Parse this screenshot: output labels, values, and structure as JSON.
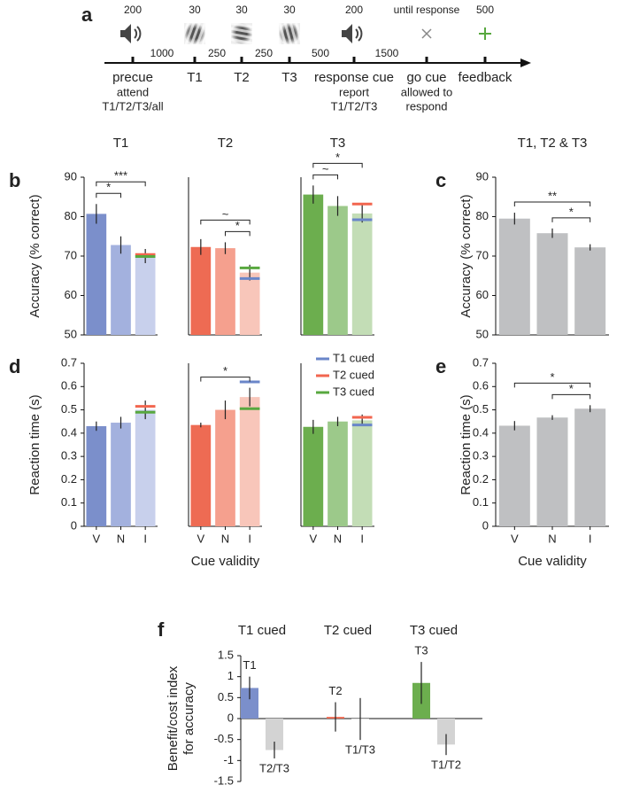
{
  "timeline": {
    "panel": "a",
    "events": [
      {
        "top": "200",
        "name": "precue",
        "sub": [
          "attend",
          "T1/T2/T3/all"
        ]
      },
      {
        "top": "30",
        "name": "T1",
        "sub": []
      },
      {
        "top": "30",
        "name": "T2",
        "sub": []
      },
      {
        "top": "30",
        "name": "T3",
        "sub": []
      },
      {
        "top": "200",
        "name": "response cue",
        "sub": [
          "report",
          "T1/T2/T3"
        ]
      },
      {
        "top": "until response",
        "name": "go cue",
        "sub": [
          "allowed to",
          "respond"
        ]
      },
      {
        "top": "500",
        "name": "feedback",
        "sub": []
      }
    ],
    "intervals": [
      "1000",
      "250",
      "250",
      "500",
      "1500"
    ]
  },
  "chart_data": [
    {
      "type": "bar",
      "panel": "b",
      "title": "T1",
      "ylabel": "Accuracy (% correct)",
      "ylim": [
        50,
        90
      ],
      "yticks": [
        50,
        60,
        70,
        80,
        90
      ],
      "values": [
        80.7,
        72.8,
        70.0
      ],
      "errors": [
        2.5,
        2.2,
        1.8
      ],
      "colors": [
        "#7b8fcb",
        "#a3b1de",
        "#c8d0ec"
      ],
      "cue_markers": [
        {
          "color": "#f2664f",
          "value": 70.4
        },
        {
          "color": "#58a83f",
          "value": 69.9
        }
      ],
      "significance": [
        {
          "between": [
            0,
            1
          ],
          "label": "*"
        },
        {
          "between": [
            0,
            2
          ],
          "label": "***"
        }
      ]
    },
    {
      "type": "bar",
      "title": "T2",
      "ylim": [
        50,
        90
      ],
      "values": [
        72.3,
        72.0,
        65.8
      ],
      "errors": [
        2.0,
        1.5,
        2.0
      ],
      "colors": [
        "#ee6b53",
        "#f5a08e",
        "#f8c6ba"
      ],
      "cue_markers": [
        {
          "color": "#58a83f",
          "value": 67.0
        },
        {
          "color": "#6a86c9",
          "value": 64.3
        }
      ],
      "significance": [
        {
          "between": [
            1,
            2
          ],
          "label": "*"
        },
        {
          "between": [
            0,
            2
          ],
          "label": "~"
        }
      ]
    },
    {
      "type": "bar",
      "title": "T3",
      "ylim": [
        50,
        90
      ],
      "values": [
        85.6,
        82.7,
        80.8
      ],
      "errors": [
        2.3,
        2.5,
        2.3
      ],
      "colors": [
        "#6cae4e",
        "#9cc98a",
        "#c3ddb6"
      ],
      "cue_markers": [
        {
          "color": "#f2664f",
          "value": 83.2
        },
        {
          "color": "#6a86c9",
          "value": 79.2
        }
      ],
      "significance": [
        {
          "between": [
            0,
            1
          ],
          "label": "~"
        },
        {
          "between": [
            0,
            2
          ],
          "label": "*"
        }
      ]
    },
    {
      "type": "bar",
      "panel": "c",
      "title": "T1, T2 & T3",
      "ylabel": "Accuracy (% correct)",
      "ylim": [
        50,
        90
      ],
      "yticks": [
        50,
        60,
        70,
        80,
        90
      ],
      "values": [
        79.5,
        75.8,
        72.2
      ],
      "errors": [
        1.5,
        1.2,
        0.8
      ],
      "colors": [
        "#bfc0c2",
        "#bfc0c2",
        "#bfc0c2"
      ],
      "significance": [
        {
          "between": [
            1,
            2
          ],
          "label": "*"
        },
        {
          "between": [
            0,
            2
          ],
          "label": "**"
        }
      ]
    },
    {
      "type": "bar",
      "panel": "d",
      "ylabel": "Reaction time (s)",
      "ylim": [
        0,
        0.7
      ],
      "yticks": [
        0,
        0.1,
        0.2,
        0.3,
        0.4,
        0.5,
        0.6,
        0.7
      ],
      "categories": [
        "V",
        "N",
        "I"
      ],
      "values": [
        0.43,
        0.445,
        0.5
      ],
      "errors": [
        0.02,
        0.025,
        0.04
      ],
      "colors": [
        "#7b8fcb",
        "#a3b1de",
        "#c8d0ec"
      ],
      "cue_markers": [
        {
          "color": "#f2664f",
          "value": 0.515
        },
        {
          "color": "#58a83f",
          "value": 0.49
        }
      ]
    },
    {
      "type": "bar",
      "xlabel": "Cue validity",
      "ylim": [
        0,
        0.7
      ],
      "categories": [
        "V",
        "N",
        "I"
      ],
      "values": [
        0.435,
        0.5,
        0.555
      ],
      "errors": [
        0.01,
        0.04,
        0.04
      ],
      "colors": [
        "#ee6b53",
        "#f5a08e",
        "#f8c6ba"
      ],
      "cue_markers": [
        {
          "color": "#6a86c9",
          "value": 0.62
        },
        {
          "color": "#58a83f",
          "value": 0.505
        }
      ],
      "significance": [
        {
          "between": [
            0,
            2
          ],
          "label": "*"
        }
      ]
    },
    {
      "type": "bar",
      "ylim": [
        0,
        0.7
      ],
      "categories": [
        "V",
        "N",
        "I"
      ],
      "values": [
        0.427,
        0.45,
        0.455
      ],
      "errors": [
        0.03,
        0.02,
        0.025
      ],
      "colors": [
        "#6cae4e",
        "#9cc98a",
        "#c3ddb6"
      ],
      "cue_markers": [
        {
          "color": "#f2664f",
          "value": 0.468
        },
        {
          "color": "#6a86c9",
          "value": 0.435
        }
      ],
      "legend": [
        {
          "name": "T1 cued",
          "color": "#6a86c9"
        },
        {
          "name": "T2 cued",
          "color": "#f2664f"
        },
        {
          "name": "T3 cued",
          "color": "#58a83f"
        }
      ]
    },
    {
      "type": "bar",
      "panel": "e",
      "ylabel": "Reaction time (s)",
      "xlabel": "Cue validity",
      "ylim": [
        0,
        0.7
      ],
      "yticks": [
        0,
        0.1,
        0.2,
        0.3,
        0.4,
        0.5,
        0.6,
        0.7
      ],
      "categories": [
        "V",
        "N",
        "I"
      ],
      "values": [
        0.432,
        0.467,
        0.505
      ],
      "errors": [
        0.02,
        0.01,
        0.015
      ],
      "colors": [
        "#bfc0c2",
        "#bfc0c2",
        "#bfc0c2"
      ],
      "significance": [
        {
          "between": [
            1,
            2
          ],
          "label": "*"
        },
        {
          "between": [
            0,
            2
          ],
          "label": "*"
        }
      ]
    },
    {
      "type": "bar",
      "panel": "f",
      "ylabel": [
        "Benefit/cost index",
        "for accuracy"
      ],
      "ylim": [
        -1.5,
        1.5
      ],
      "yticks": [
        -1.5,
        -1,
        -0.5,
        0,
        0.5,
        1,
        1.5
      ],
      "groups": [
        "T1 cued",
        "T2 cued",
        "T3 cued"
      ],
      "categories": [
        "T1",
        "T2/T3",
        "T2",
        "T1/T3",
        "T3",
        "T1/T2"
      ],
      "values": [
        0.73,
        -0.75,
        0.04,
        -0.01,
        0.85,
        -0.62
      ],
      "errors": [
        0.27,
        0.2,
        0.35,
        0.5,
        0.5,
        0.25
      ],
      "colors": [
        "#7b8fcb",
        "#d3d3d3",
        "#ee6b53",
        "#d3d3d3",
        "#6cae4e",
        "#d3d3d3"
      ]
    }
  ]
}
